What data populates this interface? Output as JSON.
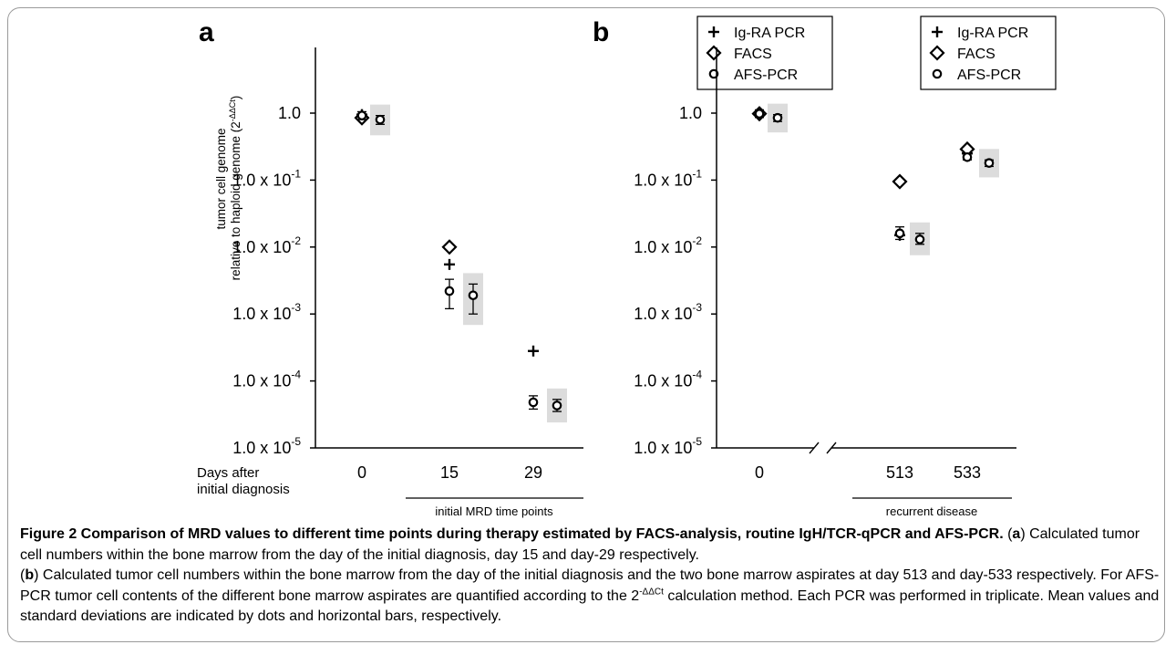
{
  "chart_data": [
    {
      "panel_label": "a",
      "type": "scatter",
      "scale": "log",
      "ylim": [
        1e-05,
        1
      ],
      "ylabel_line1": "tumor cell genome",
      "ylabel_line2": "relative to haploid genome (2",
      "ylabel_sup": "-ΔΔCt",
      "ylabel_close": ")",
      "ytick_labels": [
        {
          "base": "1.0",
          "exp": ""
        },
        {
          "base": "1.0 x 10",
          "exp": "-1"
        },
        {
          "base": "1.0 x 10",
          "exp": "-2"
        },
        {
          "base": "1.0 x 10",
          "exp": "-3"
        },
        {
          "base": "1.0 x 10",
          "exp": "-4"
        },
        {
          "base": "1.0 x 10",
          "exp": "-5"
        }
      ],
      "x_row_label_1": "Days after",
      "x_row_label_2": "initial diagnosis",
      "categories": [
        "0",
        "15",
        "29"
      ],
      "group_label": "initial MRD time points",
      "legend": [
        "Ig-RA PCR",
        "FACS",
        "AFS-PCR"
      ],
      "series": [
        {
          "name": "Ig-RA PCR",
          "marker": "plus",
          "values": [
            0.95,
            0.0055,
            0.00028
          ]
        },
        {
          "name": "FACS",
          "marker": "diamond",
          "values": [
            0.85,
            0.01,
            null
          ]
        },
        {
          "name": "AFS-PCR",
          "marker": "circle",
          "values": [
            0.92,
            0.0022,
            4.8e-05
          ],
          "err_low": [
            0.8,
            0.0012,
            3.8e-05
          ],
          "err_high": [
            1.05,
            0.0033,
            6e-05
          ]
        }
      ],
      "replicate_series": {
        "name": "AFS-PCR",
        "marker": "circle",
        "shaded": true,
        "values": [
          0.8,
          0.0019,
          4.3e-05
        ],
        "err_low": [
          0.68,
          0.001,
          3.5e-05
        ],
        "err_high": [
          0.92,
          0.0028,
          5.3e-05
        ]
      }
    },
    {
      "panel_label": "b",
      "type": "scatter",
      "scale": "log",
      "ylim": [
        1e-05,
        1
      ],
      "ytick_labels": [
        {
          "base": "1.0",
          "exp": ""
        },
        {
          "base": "1.0 x 10",
          "exp": "-1"
        },
        {
          "base": "1.0 x 10",
          "exp": "-2"
        },
        {
          "base": "1.0 x 10",
          "exp": "-3"
        },
        {
          "base": "1.0 x 10",
          "exp": "-4"
        },
        {
          "base": "1.0 x 10",
          "exp": "-5"
        }
      ],
      "categories": [
        "0",
        "513",
        "533"
      ],
      "group_label": "recurrent disease",
      "legend": [
        "Ig-RA PCR",
        "FACS",
        "AFS-PCR"
      ],
      "series": [
        {
          "name": "Ig-RA PCR",
          "marker": "plus",
          "values": [
            1.0,
            0.015,
            0.25
          ]
        },
        {
          "name": "FACS",
          "marker": "diamond",
          "values": [
            0.98,
            0.095,
            0.29
          ]
        },
        {
          "name": "AFS-PCR",
          "marker": "circle",
          "values": [
            0.98,
            0.016,
            0.22
          ],
          "err_low": [
            0.86,
            0.013,
            0.2
          ],
          "err_high": [
            1.12,
            0.02,
            0.25
          ]
        }
      ],
      "replicate_series": {
        "name": "AFS-PCR",
        "marker": "circle",
        "shaded": true,
        "values": [
          0.85,
          0.013,
          0.18
        ],
        "err_low": [
          0.75,
          0.011,
          0.16
        ],
        "err_high": [
          0.95,
          0.016,
          0.2
        ]
      }
    }
  ],
  "caption": {
    "title": "Figure 2 Comparison of MRD values to different time points during therapy estimated by FACS-analysis, routine IgH/TCR-qPCR and AFS-PCR.",
    "a_open": " (",
    "a_label": "a",
    "a_text": ") Calculated tumor cell numbers within the bone marrow from the day of the initial diagnosis, day 15 and day-29 respectively.",
    "b_open": "(",
    "b_label": "b",
    "b_text": ") Calculated tumor cell numbers within the bone marrow from the day of the initial diagnosis and the two bone marrow aspirates at day 513 and day-533 respectively. For AFS-PCR tumor cell contents of the different bone marrow aspirates are quantified according to the 2",
    "b_sup": "-ΔΔCt",
    "b_text2": " calculation method. Each PCR was performed in triplicate. Mean values and standard deviations are indicated by dots and horizontal bars, respectively."
  }
}
